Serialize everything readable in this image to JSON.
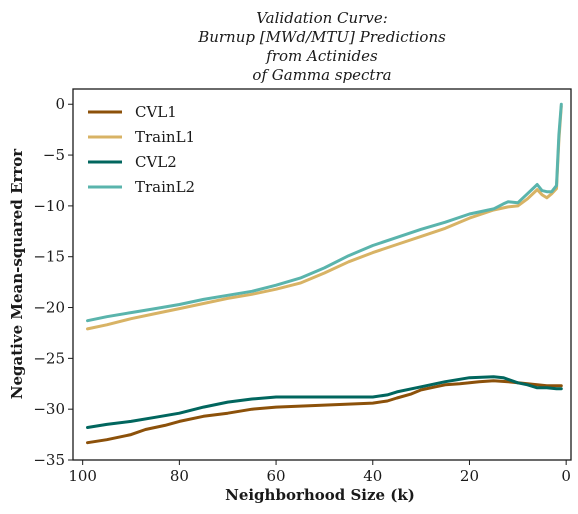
{
  "chart_data": {
    "type": "line",
    "title_lines": [
      "Validation Curve:",
      "Burnup [MWd/MTU] Predictions",
      "from Actinides",
      "of Gamma spectra"
    ],
    "xlabel": "Neighborhood Size (k)",
    "ylabel": "Negative Mean-squared Error",
    "xlim": [
      102,
      -1
    ],
    "ylim": [
      -35,
      1.5
    ],
    "xticks": [
      100,
      80,
      60,
      40,
      20,
      0
    ],
    "yticks": [
      0,
      -5,
      -10,
      -15,
      -20,
      -25,
      -30,
      -35
    ],
    "xtick_labels": [
      "100",
      "80",
      "60",
      "40",
      "20",
      "0"
    ],
    "ytick_labels": [
      "0",
      "−5",
      "−10",
      "−15",
      "−20",
      "−25",
      "−30",
      "−35"
    ],
    "grid": false,
    "legend_position": "top-left",
    "series": [
      {
        "name": "CVL1",
        "color": "#8c510a",
        "x": [
          99,
          95,
          90,
          87,
          83,
          80,
          75,
          70,
          65,
          60,
          55,
          50,
          45,
          40,
          37,
          35,
          32,
          30,
          27,
          25,
          22,
          20,
          18,
          15,
          12,
          10,
          8,
          6,
          4,
          2,
          1
        ],
        "y": [
          -33.3,
          -33.0,
          -32.5,
          -32.0,
          -31.6,
          -31.2,
          -30.7,
          -30.4,
          -30.0,
          -29.8,
          -29.7,
          -29.6,
          -29.5,
          -29.4,
          -29.2,
          -28.9,
          -28.5,
          -28.1,
          -27.8,
          -27.6,
          -27.5,
          -27.4,
          -27.3,
          -27.2,
          -27.3,
          -27.4,
          -27.5,
          -27.6,
          -27.7,
          -27.7,
          -27.7
        ]
      },
      {
        "name": "TrainL1",
        "color": "#d8b365",
        "x": [
          99,
          95,
          90,
          85,
          80,
          75,
          70,
          65,
          60,
          55,
          50,
          45,
          40,
          35,
          30,
          25,
          20,
          15,
          12,
          10,
          8,
          6,
          5,
          4,
          3,
          2,
          1.5,
          1
        ],
        "y": [
          -22.1,
          -21.7,
          -21.1,
          -20.6,
          -20.1,
          -19.6,
          -19.1,
          -18.7,
          -18.2,
          -17.6,
          -16.6,
          -15.5,
          -14.6,
          -13.8,
          -13.0,
          -12.2,
          -11.2,
          -10.4,
          -10.1,
          -10.0,
          -9.3,
          -8.4,
          -8.9,
          -9.2,
          -8.8,
          -8.3,
          -3.5,
          -0.2
        ]
      },
      {
        "name": "CVL2",
        "color": "#01665e",
        "x": [
          99,
          95,
          90,
          85,
          80,
          75,
          70,
          65,
          60,
          55,
          50,
          45,
          40,
          37,
          35,
          30,
          25,
          20,
          15,
          13,
          10,
          8,
          6,
          4,
          2,
          1
        ],
        "y": [
          -31.8,
          -31.5,
          -31.2,
          -30.8,
          -30.4,
          -29.8,
          -29.3,
          -29.0,
          -28.8,
          -28.8,
          -28.8,
          -28.8,
          -28.8,
          -28.6,
          -28.3,
          -27.8,
          -27.3,
          -26.9,
          -26.8,
          -26.9,
          -27.4,
          -27.6,
          -27.9,
          -27.9,
          -28.0,
          -28.0
        ]
      },
      {
        "name": "TrainL2",
        "color": "#5ab4ac",
        "x": [
          99,
          95,
          90,
          85,
          80,
          75,
          70,
          65,
          60,
          55,
          50,
          45,
          40,
          35,
          30,
          25,
          20,
          15,
          13,
          12,
          10,
          8,
          6,
          5,
          4,
          3,
          2,
          1.5,
          1
        ],
        "y": [
          -21.3,
          -20.9,
          -20.5,
          -20.1,
          -19.7,
          -19.2,
          -18.8,
          -18.4,
          -17.8,
          -17.1,
          -16.1,
          -14.9,
          -13.9,
          -13.1,
          -12.3,
          -11.6,
          -10.8,
          -10.3,
          -9.8,
          -9.6,
          -9.7,
          -8.8,
          -7.9,
          -8.5,
          -8.6,
          -8.6,
          -8.0,
          -3.0,
          0.0
        ]
      }
    ]
  }
}
